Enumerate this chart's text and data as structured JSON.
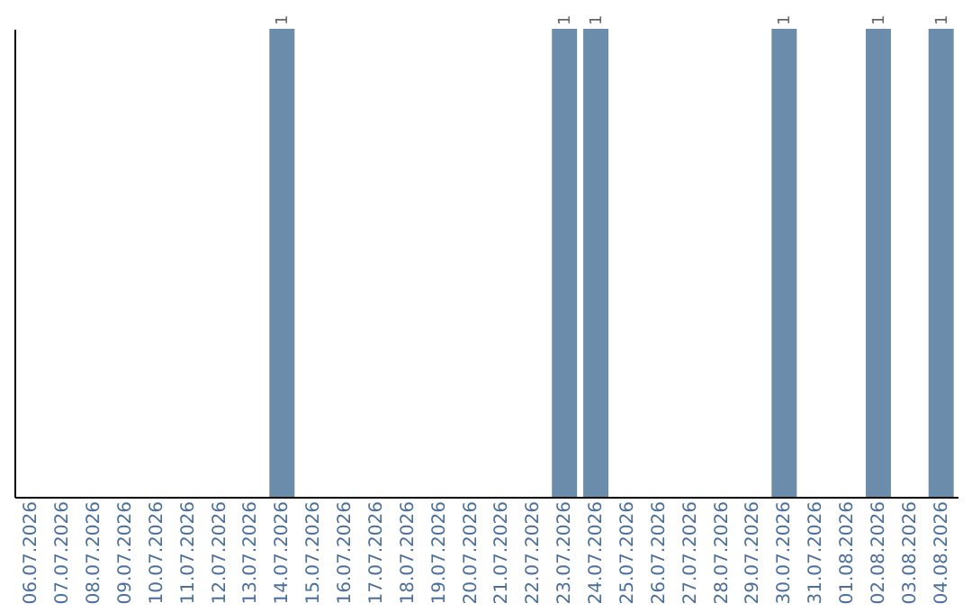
{
  "chart_data": {
    "type": "bar",
    "categories": [
      "06.07.2026",
      "07.07.2026",
      "08.07.2026",
      "09.07.2026",
      "10.07.2026",
      "11.07.2026",
      "12.07.2026",
      "13.07.2026",
      "14.07.2026",
      "15.07.2026",
      "16.07.2026",
      "17.07.2026",
      "18.07.2026",
      "19.07.2026",
      "20.07.2026",
      "21.07.2026",
      "22.07.2026",
      "23.07.2026",
      "24.07.2026",
      "25.07.2026",
      "26.07.2026",
      "27.07.2026",
      "28.07.2026",
      "29.07.2026",
      "30.07.2026",
      "31.07.2026",
      "01.08.2026",
      "02.08.2026",
      "03.08.2026",
      "04.08.2026"
    ],
    "values": [
      0,
      0,
      0,
      0,
      0,
      0,
      0,
      0,
      1,
      0,
      0,
      0,
      0,
      0,
      0,
      0,
      0,
      1,
      1,
      0,
      0,
      0,
      0,
      0,
      1,
      0,
      0,
      1,
      0,
      1
    ],
    "value_labels": [
      null,
      null,
      null,
      null,
      null,
      null,
      null,
      null,
      "1",
      null,
      null,
      null,
      null,
      null,
      null,
      null,
      null,
      "1",
      "1",
      null,
      null,
      null,
      null,
      null,
      "1",
      null,
      null,
      "1",
      null,
      "1"
    ],
    "color": "#6b8cab",
    "tick_labels": "x",
    "grid": false
  }
}
